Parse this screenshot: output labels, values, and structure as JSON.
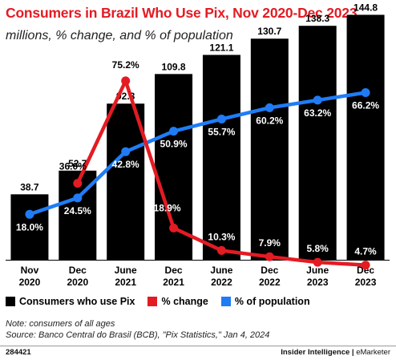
{
  "header": {
    "title": "Consumers in Brazil Who Use Pix, Nov 2020-Dec 2023",
    "subtitle": "millions, % change, and % of population"
  },
  "colors": {
    "bar": "#000000",
    "change": "#e31b23",
    "population": "#1f7cf5",
    "title": "#e31b23"
  },
  "chart_data": {
    "type": "bar",
    "categories": [
      [
        "Nov",
        "2020"
      ],
      [
        "Dec",
        "2020"
      ],
      [
        "June",
        "2021"
      ],
      [
        "Dec",
        "2021"
      ],
      [
        "June",
        "2022"
      ],
      [
        "Dec",
        "2022"
      ],
      [
        "June",
        "2023"
      ],
      [
        "Dec",
        "2023"
      ]
    ],
    "series": [
      {
        "name": "Consumers who use Pix",
        "type": "bar",
        "values": [
          38.7,
          52.7,
          92.3,
          109.8,
          121.1,
          130.7,
          138.3,
          144.8
        ],
        "labels": [
          "38.7",
          "52.7",
          "92.3",
          "109.8",
          "121.1",
          "130.7",
          "138.3",
          "144.8"
        ]
      },
      {
        "name": "% change",
        "type": "line",
        "values": [
          null,
          36.0,
          75.2,
          18.9,
          10.3,
          7.9,
          5.8,
          4.7
        ],
        "labels": [
          null,
          "36.0%",
          "75.2%",
          "18.9%",
          "10.3%",
          "7.9%",
          "5.8%",
          "4.7%"
        ]
      },
      {
        "name": "% of population",
        "type": "line",
        "values": [
          18.0,
          24.5,
          42.8,
          50.9,
          55.7,
          60.2,
          63.2,
          66.2
        ],
        "labels": [
          "18.0%",
          "24.5%",
          "42.8%",
          "50.9%",
          "55.7%",
          "60.2%",
          "63.2%",
          "66.2%"
        ]
      }
    ],
    "legend_position": "bottom",
    "grid": false
  },
  "legend": [
    {
      "label": "Consumers who use Pix",
      "color": "#000000"
    },
    {
      "label": "% change",
      "color": "#e31b23"
    },
    {
      "label": "% of population",
      "color": "#1f7cf5"
    }
  ],
  "notes": {
    "note": "Note: consumers of all ages",
    "source": "Source: Banco Central do Brasil (BCB), \"Pix Statistics,\" Jan 4, 2024"
  },
  "footer": {
    "id": "284421",
    "brand_left": "Insider Intelligence",
    "brand_sep": " | ",
    "brand_right": "eMarketer"
  }
}
